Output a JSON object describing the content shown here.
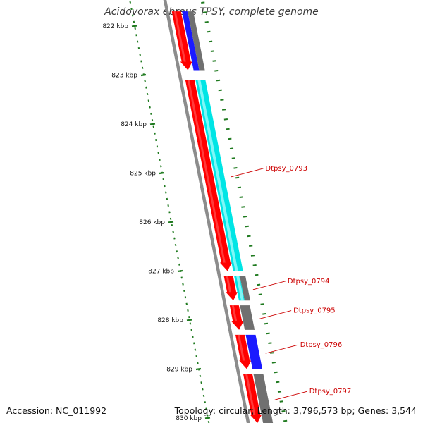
{
  "title": "Acidovorax ebreus TPSY, complete genome",
  "footer": {
    "accession": "Accession: NC_011992",
    "summary": "Topology: circular; Length: 3,796,573 bp; Genes: 3,544"
  },
  "colors": {
    "backbone": "#8c8c8c",
    "tick": "#1f7a1f",
    "cds_forward": "#ff0000",
    "blast_cyan": "#00e5e5",
    "blast_blue": "#1a1aff",
    "blast_gray": "#707070",
    "label": "#cc0000"
  },
  "ruler": {
    "ticks": [
      {
        "kbp": 822,
        "label": "822 kbp"
      },
      {
        "kbp": 823,
        "label": "823 kbp"
      },
      {
        "kbp": 824,
        "label": "824 kbp"
      },
      {
        "kbp": 825,
        "label": "825 kbp"
      },
      {
        "kbp": 826,
        "label": "826 kbp"
      },
      {
        "kbp": 827,
        "label": "827 kbp"
      },
      {
        "kbp": 828,
        "label": "828 kbp"
      },
      {
        "kbp": 829,
        "label": "829 kbp"
      },
      {
        "kbp": 830,
        "label": "830 kbp"
      }
    ]
  },
  "genes": [
    {
      "label": "",
      "start_kbp": 821.7,
      "end_kbp": 822.9,
      "strand": "forward",
      "hit": [
        "blue",
        "gray"
      ]
    },
    {
      "label": "Dtpsy_0793",
      "start_kbp": 823.1,
      "end_kbp": 827.0,
      "strand": "forward",
      "hit": [
        "cyan"
      ]
    },
    {
      "label": "Dtpsy_0794",
      "start_kbp": 827.1,
      "end_kbp": 827.6,
      "strand": "forward",
      "hit": [
        "cyan",
        "gray"
      ]
    },
    {
      "label": "Dtpsy_0795",
      "start_kbp": 827.7,
      "end_kbp": 828.2,
      "strand": "forward",
      "hit": [
        "gray"
      ]
    },
    {
      "label": "Dtpsy_0796",
      "start_kbp": 828.3,
      "end_kbp": 829.0,
      "strand": "forward",
      "hit": [
        "blue"
      ]
    },
    {
      "label": "Dtpsy_0797",
      "start_kbp": 829.1,
      "end_kbp": 830.1,
      "strand": "forward",
      "hit": [
        "gray"
      ]
    }
  ]
}
